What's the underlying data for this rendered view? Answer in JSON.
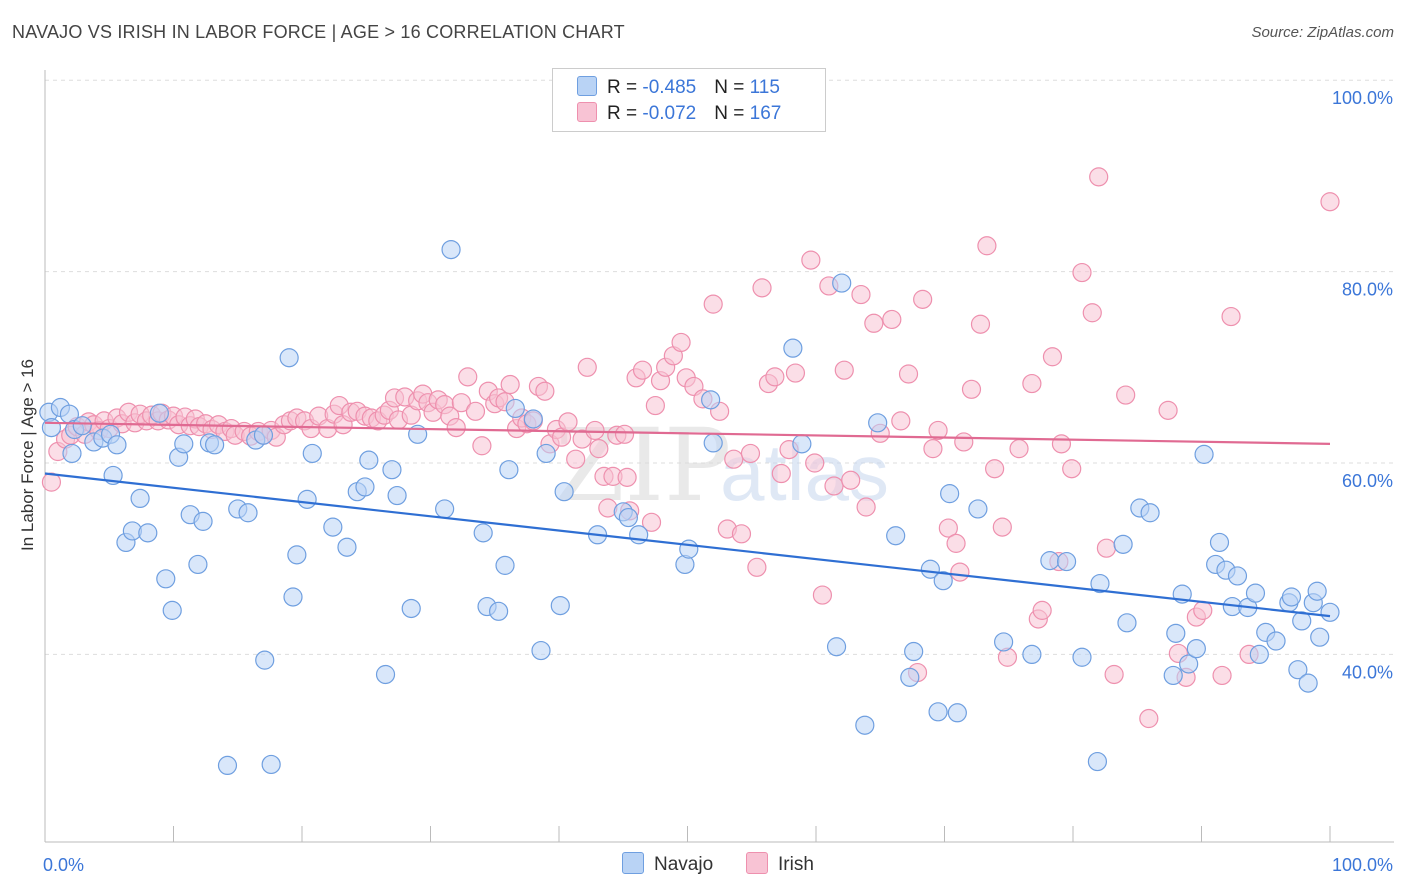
{
  "header": {
    "title": "NAVAJO VS IRISH IN LABOR FORCE | AGE > 16 CORRELATION CHART",
    "source": "Source: ZipAtlas.com"
  },
  "legend": {
    "navajo": {
      "r_label": "R = ",
      "r_value": "-0.485",
      "n_label": "N = ",
      "n_value": "115"
    },
    "irish": {
      "r_label": "R = ",
      "r_value": "-0.072",
      "n_label": "N = ",
      "n_value": "167"
    }
  },
  "watermark": "ZIPatlas",
  "colors": {
    "navajo_fill": "#b9d3f5",
    "navajo_stroke": "#6f9fe0",
    "navajo_line": "#2f6fd3",
    "irish_fill": "#f8c3d4",
    "irish_stroke": "#ee90ae",
    "irish_line": "#e06a92",
    "tick_label": "#3b76d8"
  },
  "chart_data": {
    "type": "scatter",
    "title": "NAVAJO VS IRISH IN LABOR FORCE | AGE > 16 CORRELATION CHART",
    "xlabel": "",
    "ylabel": "In Labor Force | Age > 16",
    "xlim": [
      0,
      100
    ],
    "ylim": [
      20,
      104
    ],
    "x_tick_labels": [
      "0.0%",
      "100.0%"
    ],
    "y_ticks": [
      40,
      60,
      80,
      100
    ],
    "y_tick_labels": [
      "40.0%",
      "60.0%",
      "80.0%",
      "100.0%"
    ],
    "grid": true,
    "legend_position": "top-center",
    "series": [
      {
        "name": "Navajo",
        "trend": {
          "x": [
            0,
            100
          ],
          "y": [
            58.9,
            44.0
          ]
        },
        "points": [
          [
            0.3,
            65.3
          ],
          [
            0.5,
            63.7
          ],
          [
            1.2,
            65.8
          ],
          [
            1.9,
            65.1
          ],
          [
            2.1,
            61.0
          ],
          [
            2.3,
            63.5
          ],
          [
            2.9,
            63.9
          ],
          [
            3.8,
            62.2
          ],
          [
            4.5,
            62.6
          ],
          [
            5.1,
            63.0
          ],
          [
            5.3,
            58.7
          ],
          [
            5.6,
            61.9
          ],
          [
            6.3,
            51.7
          ],
          [
            6.8,
            52.9
          ],
          [
            7.4,
            56.3
          ],
          [
            8.0,
            52.7
          ],
          [
            8.9,
            65.2
          ],
          [
            9.4,
            47.9
          ],
          [
            9.9,
            44.6
          ],
          [
            10.4,
            60.6
          ],
          [
            10.8,
            62.0
          ],
          [
            11.3,
            54.6
          ],
          [
            11.9,
            49.4
          ],
          [
            12.3,
            53.9
          ],
          [
            12.8,
            62.1
          ],
          [
            13.2,
            61.9
          ],
          [
            14.2,
            28.4
          ],
          [
            15.0,
            55.2
          ],
          [
            15.8,
            54.8
          ],
          [
            16.4,
            62.4
          ],
          [
            17.0,
            62.9
          ],
          [
            17.1,
            39.4
          ],
          [
            17.6,
            28.5
          ],
          [
            19.0,
            71.0
          ],
          [
            19.3,
            46.0
          ],
          [
            19.6,
            50.4
          ],
          [
            20.4,
            56.2
          ],
          [
            20.8,
            61.0
          ],
          [
            22.4,
            53.3
          ],
          [
            23.5,
            51.2
          ],
          [
            24.3,
            57.0
          ],
          [
            24.9,
            57.5
          ],
          [
            25.2,
            60.3
          ],
          [
            26.5,
            37.9
          ],
          [
            27.0,
            59.3
          ],
          [
            27.4,
            56.6
          ],
          [
            28.5,
            44.8
          ],
          [
            29.0,
            63.0
          ],
          [
            31.1,
            55.2
          ],
          [
            31.6,
            82.3
          ],
          [
            34.1,
            52.7
          ],
          [
            34.4,
            45.0
          ],
          [
            35.3,
            44.5
          ],
          [
            35.8,
            49.3
          ],
          [
            36.1,
            59.3
          ],
          [
            36.6,
            65.7
          ],
          [
            38.0,
            64.6
          ],
          [
            38.6,
            40.4
          ],
          [
            39.0,
            61.0
          ],
          [
            40.1,
            45.1
          ],
          [
            40.4,
            57.0
          ],
          [
            43.0,
            52.5
          ],
          [
            45.0,
            54.9
          ],
          [
            45.4,
            54.3
          ],
          [
            46.2,
            52.5
          ],
          [
            49.8,
            49.4
          ],
          [
            50.1,
            51.0
          ],
          [
            51.8,
            66.6
          ],
          [
            52.0,
            62.1
          ],
          [
            58.2,
            72.0
          ],
          [
            58.9,
            62.0
          ],
          [
            61.6,
            40.8
          ],
          [
            62.0,
            78.8
          ],
          [
            63.8,
            32.6
          ],
          [
            64.8,
            64.2
          ],
          [
            66.2,
            52.4
          ],
          [
            67.3,
            37.6
          ],
          [
            67.6,
            40.3
          ],
          [
            68.9,
            48.9
          ],
          [
            69.5,
            34.0
          ],
          [
            69.9,
            47.7
          ],
          [
            70.4,
            56.8
          ],
          [
            71.0,
            33.9
          ],
          [
            72.6,
            55.2
          ],
          [
            74.6,
            41.3
          ],
          [
            76.8,
            40.0
          ],
          [
            78.2,
            49.8
          ],
          [
            79.5,
            49.7
          ],
          [
            80.7,
            39.7
          ],
          [
            81.9,
            28.8
          ],
          [
            82.1,
            47.4
          ],
          [
            83.9,
            51.5
          ],
          [
            84.2,
            43.3
          ],
          [
            85.2,
            55.3
          ],
          [
            86.0,
            54.8
          ],
          [
            87.8,
            37.8
          ],
          [
            88.0,
            42.2
          ],
          [
            88.5,
            46.3
          ],
          [
            89.0,
            39.0
          ],
          [
            89.6,
            40.6
          ],
          [
            90.2,
            60.9
          ],
          [
            91.1,
            49.4
          ],
          [
            91.4,
            51.7
          ],
          [
            91.9,
            48.8
          ],
          [
            92.4,
            45.0
          ],
          [
            92.8,
            48.2
          ],
          [
            93.6,
            44.9
          ],
          [
            94.2,
            46.4
          ],
          [
            94.5,
            40.0
          ],
          [
            95.0,
            42.3
          ],
          [
            95.8,
            41.4
          ],
          [
            96.8,
            45.4
          ],
          [
            97.0,
            46.0
          ],
          [
            97.5,
            38.4
          ],
          [
            97.8,
            43.5
          ],
          [
            98.3,
            37.0
          ],
          [
            98.7,
            45.4
          ],
          [
            99.0,
            46.6
          ],
          [
            99.2,
            41.8
          ],
          [
            100,
            44.4
          ]
        ]
      },
      {
        "name": "Irish",
        "trend": {
          "x": [
            0,
            100
          ],
          "y": [
            64.2,
            62.0
          ]
        },
        "points": [
          [
            0.5,
            58.0
          ],
          [
            1.0,
            61.2
          ],
          [
            1.6,
            62.5
          ],
          [
            2.0,
            62.9
          ],
          [
            2.5,
            63.8
          ],
          [
            3.1,
            63.0
          ],
          [
            3.4,
            64.3
          ],
          [
            3.8,
            64.0
          ],
          [
            4.2,
            63.4
          ],
          [
            4.6,
            64.4
          ],
          [
            5.0,
            63.6
          ],
          [
            5.6,
            64.7
          ],
          [
            6.0,
            64.1
          ],
          [
            6.5,
            65.3
          ],
          [
            7.0,
            64.2
          ],
          [
            7.4,
            65.1
          ],
          [
            7.9,
            64.4
          ],
          [
            8.3,
            65.0
          ],
          [
            8.8,
            64.4
          ],
          [
            9.1,
            65.2
          ],
          [
            9.6,
            64.5
          ],
          [
            10.0,
            64.9
          ],
          [
            10.4,
            64.0
          ],
          [
            10.9,
            64.8
          ],
          [
            11.3,
            63.9
          ],
          [
            11.7,
            64.6
          ],
          [
            12.0,
            63.8
          ],
          [
            12.5,
            64.1
          ],
          [
            13.0,
            63.5
          ],
          [
            13.5,
            64.0
          ],
          [
            14.0,
            63.3
          ],
          [
            14.5,
            63.6
          ],
          [
            14.8,
            62.9
          ],
          [
            15.5,
            63.3
          ],
          [
            16.0,
            62.8
          ],
          [
            16.6,
            63.3
          ],
          [
            17.0,
            62.9
          ],
          [
            17.6,
            63.4
          ],
          [
            18.0,
            62.7
          ],
          [
            18.6,
            64.0
          ],
          [
            19.1,
            64.4
          ],
          [
            19.6,
            64.7
          ],
          [
            20.2,
            64.4
          ],
          [
            20.7,
            63.6
          ],
          [
            21.3,
            64.9
          ],
          [
            22.0,
            63.6
          ],
          [
            22.5,
            65.1
          ],
          [
            22.9,
            66.0
          ],
          [
            23.2,
            64.0
          ],
          [
            23.8,
            65.3
          ],
          [
            24.3,
            65.4
          ],
          [
            24.9,
            64.9
          ],
          [
            25.4,
            64.7
          ],
          [
            25.9,
            64.4
          ],
          [
            26.4,
            65.0
          ],
          [
            26.8,
            65.5
          ],
          [
            27.2,
            66.8
          ],
          [
            27.5,
            64.5
          ],
          [
            28.0,
            66.9
          ],
          [
            28.5,
            65.0
          ],
          [
            29.0,
            66.5
          ],
          [
            29.4,
            67.2
          ],
          [
            29.8,
            66.3
          ],
          [
            30.2,
            65.3
          ],
          [
            30.6,
            66.6
          ],
          [
            31.1,
            66.1
          ],
          [
            31.5,
            64.9
          ],
          [
            32.0,
            63.7
          ],
          [
            32.4,
            66.3
          ],
          [
            32.9,
            69.0
          ],
          [
            33.5,
            65.4
          ],
          [
            34.0,
            61.8
          ],
          [
            34.5,
            67.5
          ],
          [
            35.0,
            66.2
          ],
          [
            35.3,
            66.8
          ],
          [
            35.8,
            66.4
          ],
          [
            36.2,
            68.2
          ],
          [
            36.7,
            63.6
          ],
          [
            37.1,
            64.7
          ],
          [
            37.5,
            64.1
          ],
          [
            38.0,
            64.4
          ],
          [
            38.4,
            68.0
          ],
          [
            38.9,
            67.5
          ],
          [
            39.3,
            62.0
          ],
          [
            39.8,
            63.5
          ],
          [
            40.2,
            62.7
          ],
          [
            40.7,
            64.3
          ],
          [
            41.3,
            60.4
          ],
          [
            41.8,
            62.5
          ],
          [
            42.2,
            70.0
          ],
          [
            42.8,
            63.4
          ],
          [
            43.1,
            61.5
          ],
          [
            43.5,
            58.6
          ],
          [
            43.8,
            55.3
          ],
          [
            44.2,
            58.6
          ],
          [
            44.5,
            62.9
          ],
          [
            45.1,
            63.0
          ],
          [
            45.3,
            58.5
          ],
          [
            45.5,
            55.0
          ],
          [
            46.0,
            68.9
          ],
          [
            46.5,
            69.7
          ],
          [
            47.2,
            53.8
          ],
          [
            47.5,
            66.0
          ],
          [
            47.9,
            68.6
          ],
          [
            48.3,
            70.0
          ],
          [
            48.9,
            71.2
          ],
          [
            49.5,
            72.6
          ],
          [
            49.9,
            68.9
          ],
          [
            50.5,
            68.0
          ],
          [
            51.2,
            66.7
          ],
          [
            52.0,
            76.6
          ],
          [
            52.5,
            65.4
          ],
          [
            53.1,
            53.1
          ],
          [
            53.6,
            60.4
          ],
          [
            54.2,
            52.6
          ],
          [
            54.9,
            61.0
          ],
          [
            55.4,
            49.1
          ],
          [
            55.8,
            78.3
          ],
          [
            56.3,
            68.3
          ],
          [
            56.8,
            69.0
          ],
          [
            57.3,
            58.9
          ],
          [
            57.9,
            61.4
          ],
          [
            58.4,
            69.4
          ],
          [
            59.6,
            81.2
          ],
          [
            59.9,
            60.0
          ],
          [
            60.5,
            46.2
          ],
          [
            61.0,
            78.5
          ],
          [
            61.4,
            57.6
          ],
          [
            62.2,
            69.7
          ],
          [
            62.7,
            58.2
          ],
          [
            63.5,
            77.6
          ],
          [
            63.9,
            55.4
          ],
          [
            64.5,
            74.6
          ],
          [
            65.0,
            63.1
          ],
          [
            65.9,
            75.0
          ],
          [
            66.6,
            64.4
          ],
          [
            67.2,
            69.3
          ],
          [
            67.9,
            38.1
          ],
          [
            68.3,
            77.1
          ],
          [
            69.1,
            61.5
          ],
          [
            69.5,
            63.4
          ],
          [
            70.3,
            53.2
          ],
          [
            70.9,
            51.6
          ],
          [
            71.2,
            48.6
          ],
          [
            71.5,
            62.2
          ],
          [
            72.1,
            67.7
          ],
          [
            72.8,
            74.5
          ],
          [
            73.3,
            82.7
          ],
          [
            73.9,
            59.4
          ],
          [
            74.5,
            53.3
          ],
          [
            74.9,
            39.7
          ],
          [
            75.8,
            61.5
          ],
          [
            76.8,
            68.3
          ],
          [
            77.3,
            43.7
          ],
          [
            77.6,
            44.6
          ],
          [
            78.4,
            71.1
          ],
          [
            78.9,
            49.7
          ],
          [
            79.1,
            62.0
          ],
          [
            79.9,
            59.4
          ],
          [
            80.7,
            79.9
          ],
          [
            81.5,
            75.7
          ],
          [
            82.0,
            89.9
          ],
          [
            82.6,
            51.1
          ],
          [
            83.2,
            37.9
          ],
          [
            84.1,
            67.1
          ],
          [
            85.9,
            33.3
          ],
          [
            87.4,
            65.5
          ],
          [
            88.2,
            40.1
          ],
          [
            88.8,
            37.6
          ],
          [
            89.6,
            43.9
          ],
          [
            90.1,
            44.6
          ],
          [
            91.6,
            37.8
          ],
          [
            92.3,
            75.3
          ],
          [
            93.7,
            40.0
          ],
          [
            100,
            87.3
          ]
        ]
      }
    ]
  },
  "bottom_legend": {
    "navajo": "Navajo",
    "irish": "Irish"
  }
}
